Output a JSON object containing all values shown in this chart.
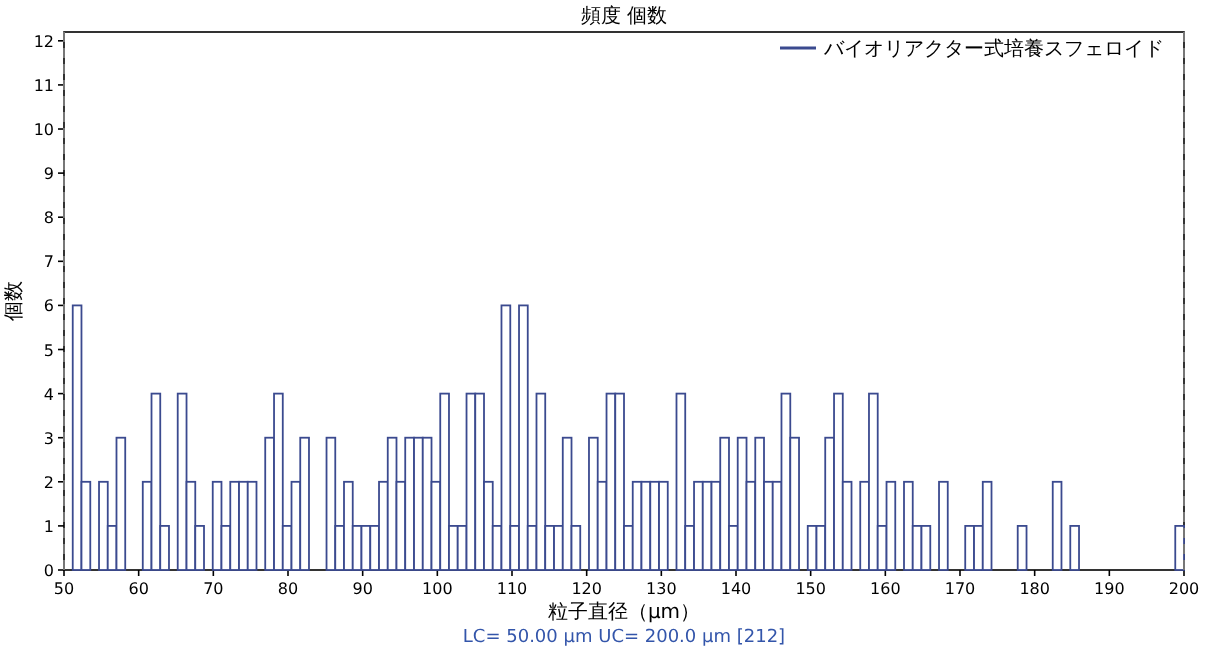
{
  "chart_data": {
    "type": "histogram",
    "title": "頻度 個数",
    "xlabel": "粒子直径（μm）",
    "ylabel": "個数",
    "annotations": [
      "LC= 50.00 μm   UC= 200.0 μm [212]"
    ],
    "bins": [
      50,
      51.17,
      52.34,
      53.52,
      54.69,
      55.86,
      57.03,
      58.2,
      59.38,
      60.55,
      61.72,
      62.89,
      64.06,
      65.23,
      66.41,
      67.58,
      68.75,
      69.92,
      71.09,
      72.27,
      73.44,
      74.61,
      75.78,
      76.95,
      78.13,
      79.3,
      80.47,
      81.64,
      82.81,
      83.98,
      85.16,
      86.33,
      87.5,
      88.67,
      89.84,
      91.02,
      92.19,
      93.36,
      94.53,
      95.7,
      96.88,
      98.05,
      99.22,
      100.39,
      101.56,
      102.73,
      103.91,
      105.08,
      106.25,
      107.42,
      108.59,
      109.77,
      110.94,
      112.11,
      113.28,
      114.45,
      115.63,
      116.8,
      117.97,
      119.14,
      120.31,
      121.48,
      122.66,
      123.83,
      125,
      126.17,
      127.34,
      128.52,
      129.69,
      130.86,
      132.03,
      133.2,
      134.38,
      135.55,
      136.72,
      137.89,
      139.06,
      140.23,
      141.41,
      142.58,
      143.75,
      144.92,
      146.09,
      147.27,
      148.44,
      149.61,
      150.78,
      151.95,
      153.13,
      154.3,
      155.47,
      156.64,
      157.81,
      158.98,
      160.16,
      161.33,
      162.5,
      163.67,
      164.84,
      166.02,
      167.19,
      168.36,
      169.53,
      170.7,
      171.88,
      173.05,
      174.22,
      175.39,
      176.56,
      177.73,
      178.91,
      180.08,
      181.25,
      182.42,
      183.59,
      184.77,
      185.94,
      187.11,
      188.28,
      189.45,
      190.63,
      191.8,
      192.97,
      194.14,
      195.31,
      196.48,
      197.66,
      198.83,
      200
    ],
    "series": [
      {
        "name": "バイオリアクター式培養スフェロイド",
        "color": "#3b4a8f",
        "values": [
          0,
          6,
          2,
          0,
          2,
          1,
          3,
          0,
          0,
          2,
          4,
          1,
          0,
          4,
          2,
          1,
          0,
          2,
          1,
          2,
          2,
          2,
          0,
          3,
          4,
          1,
          2,
          3,
          0,
          0,
          3,
          1,
          2,
          1,
          1,
          1,
          2,
          3,
          2,
          3,
          3,
          3,
          2,
          4,
          1,
          1,
          4,
          4,
          2,
          1,
          6,
          1,
          6,
          1,
          4,
          1,
          1,
          3,
          1,
          0,
          3,
          2,
          4,
          4,
          1,
          2,
          2,
          2,
          2,
          0,
          4,
          1,
          2,
          2,
          2,
          3,
          1,
          3,
          2,
          3,
          2,
          2,
          4,
          3,
          0,
          1,
          1,
          3,
          4,
          2,
          0,
          2,
          4,
          1,
          2,
          0,
          2,
          1,
          1,
          0,
          2,
          0,
          0,
          1,
          1,
          2,
          0,
          0,
          0,
          1,
          0,
          0,
          0,
          2,
          0,
          1,
          0,
          0,
          0,
          0,
          0,
          0,
          0,
          0,
          0,
          0,
          0,
          1
        ]
      }
    ],
    "xlim": [
      50,
      200
    ],
    "ylim": [
      0,
      12.2
    ],
    "xticks": [
      50,
      60,
      70,
      80,
      90,
      100,
      110,
      120,
      130,
      140,
      150,
      160,
      170,
      180,
      190,
      200
    ],
    "yticks": [
      0,
      1,
      2,
      3,
      4,
      5,
      6,
      7,
      8,
      9,
      10,
      11,
      12
    ],
    "ref_lines": [
      {
        "axis": "x",
        "value": 50,
        "color": "#777777",
        "line_style": "dashed"
      },
      {
        "axis": "x",
        "value": 200,
        "color": "#777777",
        "line_style": "dashed"
      }
    ],
    "legend": "top right"
  }
}
